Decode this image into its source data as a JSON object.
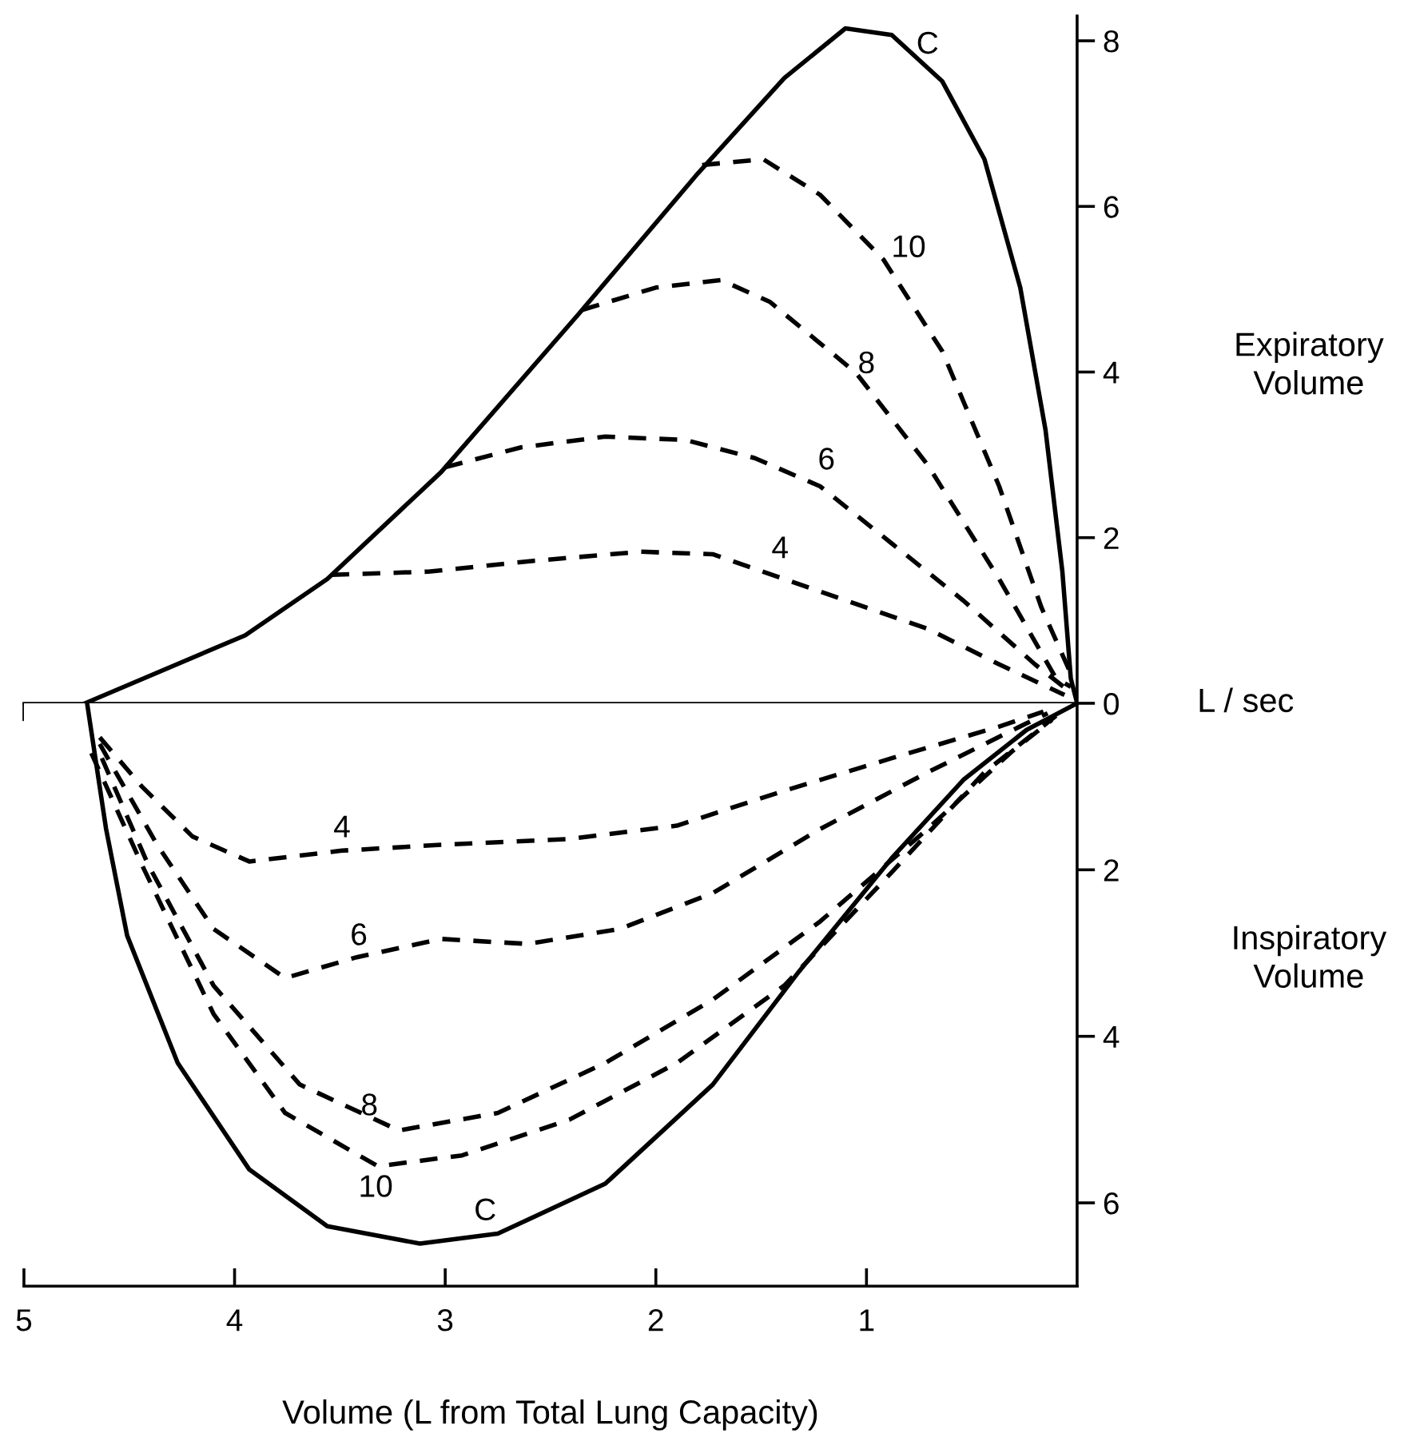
{
  "chart_data": [
    {
      "type": "line",
      "ylabel": "L / sec",
      "xlim": [
        5,
        0
      ],
      "xticks": [
        5,
        4,
        3,
        2,
        1
      ],
      "ylim": [
        0,
        8.3
      ],
      "yticks": [
        0,
        2,
        4,
        6,
        8
      ],
      "tick_labels": "y",
      "grid": false,
      "legend": false,
      "marker": "none",
      "series": [
        {
          "color": "#000000",
          "line_style": "solid",
          "x": [
            4.71,
            3.95,
            3.56,
            3.02,
            2.37,
            1.8,
            1.39,
            1.1,
            0.88,
            0.64,
            0.44,
            0.27,
            0.15,
            0.07,
            0.03,
            0
          ],
          "values": [
            0,
            0.82,
            1.5,
            2.79,
            4.69,
            6.4,
            7.55,
            8.15,
            8.07,
            7.51,
            6.57,
            5.02,
            3.3,
            1.59,
            0.3,
            0
          ]
        },
        {
          "color": "#000000",
          "line_style": "dashed",
          "x": [
            1.78,
            1.49,
            1.22,
            0.92,
            0.64,
            0.37,
            0.17,
            0.02
          ],
          "values": [
            6.5,
            6.57,
            6.14,
            5.36,
            4.25,
            2.62,
            1.16,
            0.3
          ]
        },
        {
          "color": "#000000",
          "line_style": "dashed",
          "x": [
            2.35,
            2.0,
            1.69,
            1.46,
            1.05,
            0.71,
            0.37,
            0.1,
            0.03
          ],
          "values": [
            4.75,
            5.02,
            5.11,
            4.85,
            3.99,
            2.88,
            1.5,
            0.3,
            0.2
          ]
        },
        {
          "color": "#000000",
          "line_style": "dashed",
          "x": [
            3.0,
            2.64,
            2.24,
            1.86,
            1.53,
            1.22,
            0.88,
            0.54,
            0.2,
            0.04
          ],
          "values": [
            2.85,
            3.09,
            3.22,
            3.18,
            2.96,
            2.62,
            1.93,
            1.24,
            0.47,
            0.15
          ]
        },
        {
          "color": "#000000",
          "line_style": "dashed",
          "x": [
            3.54,
            3.08,
            2.58,
            2.07,
            1.73,
            1.39,
            1.05,
            0.71,
            0.37,
            0.06
          ],
          "values": [
            1.55,
            1.59,
            1.72,
            1.83,
            1.8,
            1.5,
            1.2,
            0.9,
            0.47,
            0.1
          ]
        }
      ],
      "annotations": [
        "C",
        "10",
        "8",
        "6",
        "4",
        "Expiratory Volume"
      ]
    },
    {
      "type": "line",
      "xlabel": "Volume (L from Total Lung Capacity)",
      "xlim": [
        5,
        0
      ],
      "xticks": [
        5,
        4,
        3,
        2,
        1
      ],
      "ylim": [
        7.0,
        0
      ],
      "yticks": [
        2,
        4,
        6
      ],
      "grid": false,
      "legend": false,
      "marker": "none",
      "series": [
        {
          "color": "#000000",
          "line_style": "solid",
          "x": [
            4.7,
            4.69,
            4.61,
            4.51,
            4.27,
            3.93,
            3.56,
            3.12,
            2.75,
            2.24,
            1.73,
            1.32,
            0.88,
            0.54,
            0.24,
            0
          ],
          "values": [
            0,
            0.17,
            1.51,
            2.79,
            4.32,
            5.6,
            6.28,
            6.49,
            6.37,
            5.77,
            4.58,
            3.22,
            1.86,
            0.92,
            0.32,
            0
          ]
        },
        {
          "color": "#000000",
          "line_style": "dashed",
          "x": [
            4.68,
            4.44,
            4.1,
            3.76,
            3.32,
            2.92,
            2.41,
            1.9,
            1.39,
            0.88,
            0.44,
            0.1
          ],
          "values": [
            0.6,
            1.94,
            3.73,
            4.92,
            5.56,
            5.43,
            5.0,
            4.32,
            3.39,
            2.03,
            0.83,
            0.15
          ]
        },
        {
          "color": "#000000",
          "line_style": "dashed",
          "x": [
            4.63,
            4.41,
            4.1,
            3.69,
            3.22,
            2.75,
            2.24,
            1.73,
            1.22,
            0.71,
            0.31,
            0.12
          ],
          "values": [
            0.66,
            1.94,
            3.39,
            4.58,
            5.13,
            4.92,
            4.32,
            3.56,
            2.62,
            1.51,
            0.58,
            0.2
          ]
        },
        {
          "color": "#000000",
          "line_style": "dashed",
          "x": [
            4.64,
            4.37,
            4.1,
            3.76,
            3.42,
            3.02,
            2.61,
            2.17,
            1.73,
            1.22,
            0.71,
            0.24,
            0.14
          ],
          "values": [
            0.49,
            1.69,
            2.71,
            3.3,
            3.05,
            2.83,
            2.89,
            2.71,
            2.28,
            1.51,
            0.83,
            0.24,
            0.12
          ]
        },
        {
          "color": "#000000",
          "line_style": "dashed",
          "x": [
            4.64,
            4.44,
            4.2,
            3.93,
            3.49,
            3.02,
            2.41,
            1.9,
            1.39,
            0.88,
            0.37,
            0.16
          ],
          "values": [
            0.41,
            1.0,
            1.6,
            1.9,
            1.77,
            1.7,
            1.63,
            1.47,
            1.05,
            0.66,
            0.28,
            0.1
          ]
        }
      ],
      "annotations": [
        "4",
        "6",
        "8",
        "10",
        "C",
        "Inspiratory Volume"
      ]
    }
  ]
}
